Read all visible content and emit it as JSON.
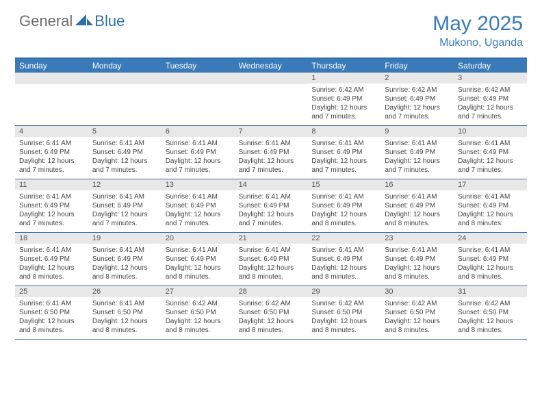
{
  "logo": {
    "general": "General",
    "blue": "Blue"
  },
  "title": "May 2025",
  "location": "Mukono, Uganda",
  "colors": {
    "brand_blue": "#3a7ab8",
    "header_bar": "#3a7ab8",
    "date_bar_bg": "#e8e8e8",
    "rule": "#2f6fa8",
    "text": "#333333",
    "logo_gray": "#6e6e6e"
  },
  "day_names": [
    "Sunday",
    "Monday",
    "Tuesday",
    "Wednesday",
    "Thursday",
    "Friday",
    "Saturday"
  ],
  "weeks": [
    [
      null,
      null,
      null,
      null,
      {
        "d": "1",
        "sr": "Sunrise: 6:42 AM",
        "ss": "Sunset: 6:49 PM",
        "dl1": "Daylight: 12 hours",
        "dl2": "and 7 minutes."
      },
      {
        "d": "2",
        "sr": "Sunrise: 6:42 AM",
        "ss": "Sunset: 6:49 PM",
        "dl1": "Daylight: 12 hours",
        "dl2": "and 7 minutes."
      },
      {
        "d": "3",
        "sr": "Sunrise: 6:42 AM",
        "ss": "Sunset: 6:49 PM",
        "dl1": "Daylight: 12 hours",
        "dl2": "and 7 minutes."
      }
    ],
    [
      {
        "d": "4",
        "sr": "Sunrise: 6:41 AM",
        "ss": "Sunset: 6:49 PM",
        "dl1": "Daylight: 12 hours",
        "dl2": "and 7 minutes."
      },
      {
        "d": "5",
        "sr": "Sunrise: 6:41 AM",
        "ss": "Sunset: 6:49 PM",
        "dl1": "Daylight: 12 hours",
        "dl2": "and 7 minutes."
      },
      {
        "d": "6",
        "sr": "Sunrise: 6:41 AM",
        "ss": "Sunset: 6:49 PM",
        "dl1": "Daylight: 12 hours",
        "dl2": "and 7 minutes."
      },
      {
        "d": "7",
        "sr": "Sunrise: 6:41 AM",
        "ss": "Sunset: 6:49 PM",
        "dl1": "Daylight: 12 hours",
        "dl2": "and 7 minutes."
      },
      {
        "d": "8",
        "sr": "Sunrise: 6:41 AM",
        "ss": "Sunset: 6:49 PM",
        "dl1": "Daylight: 12 hours",
        "dl2": "and 7 minutes."
      },
      {
        "d": "9",
        "sr": "Sunrise: 6:41 AM",
        "ss": "Sunset: 6:49 PM",
        "dl1": "Daylight: 12 hours",
        "dl2": "and 7 minutes."
      },
      {
        "d": "10",
        "sr": "Sunrise: 6:41 AM",
        "ss": "Sunset: 6:49 PM",
        "dl1": "Daylight: 12 hours",
        "dl2": "and 7 minutes."
      }
    ],
    [
      {
        "d": "11",
        "sr": "Sunrise: 6:41 AM",
        "ss": "Sunset: 6:49 PM",
        "dl1": "Daylight: 12 hours",
        "dl2": "and 7 minutes."
      },
      {
        "d": "12",
        "sr": "Sunrise: 6:41 AM",
        "ss": "Sunset: 6:49 PM",
        "dl1": "Daylight: 12 hours",
        "dl2": "and 7 minutes."
      },
      {
        "d": "13",
        "sr": "Sunrise: 6:41 AM",
        "ss": "Sunset: 6:49 PM",
        "dl1": "Daylight: 12 hours",
        "dl2": "and 7 minutes."
      },
      {
        "d": "14",
        "sr": "Sunrise: 6:41 AM",
        "ss": "Sunset: 6:49 PM",
        "dl1": "Daylight: 12 hours",
        "dl2": "and 7 minutes."
      },
      {
        "d": "15",
        "sr": "Sunrise: 6:41 AM",
        "ss": "Sunset: 6:49 PM",
        "dl1": "Daylight: 12 hours",
        "dl2": "and 8 minutes."
      },
      {
        "d": "16",
        "sr": "Sunrise: 6:41 AM",
        "ss": "Sunset: 6:49 PM",
        "dl1": "Daylight: 12 hours",
        "dl2": "and 8 minutes."
      },
      {
        "d": "17",
        "sr": "Sunrise: 6:41 AM",
        "ss": "Sunset: 6:49 PM",
        "dl1": "Daylight: 12 hours",
        "dl2": "and 8 minutes."
      }
    ],
    [
      {
        "d": "18",
        "sr": "Sunrise: 6:41 AM",
        "ss": "Sunset: 6:49 PM",
        "dl1": "Daylight: 12 hours",
        "dl2": "and 8 minutes."
      },
      {
        "d": "19",
        "sr": "Sunrise: 6:41 AM",
        "ss": "Sunset: 6:49 PM",
        "dl1": "Daylight: 12 hours",
        "dl2": "and 8 minutes."
      },
      {
        "d": "20",
        "sr": "Sunrise: 6:41 AM",
        "ss": "Sunset: 6:49 PM",
        "dl1": "Daylight: 12 hours",
        "dl2": "and 8 minutes."
      },
      {
        "d": "21",
        "sr": "Sunrise: 6:41 AM",
        "ss": "Sunset: 6:49 PM",
        "dl1": "Daylight: 12 hours",
        "dl2": "and 8 minutes."
      },
      {
        "d": "22",
        "sr": "Sunrise: 6:41 AM",
        "ss": "Sunset: 6:49 PM",
        "dl1": "Daylight: 12 hours",
        "dl2": "and 8 minutes."
      },
      {
        "d": "23",
        "sr": "Sunrise: 6:41 AM",
        "ss": "Sunset: 6:49 PM",
        "dl1": "Daylight: 12 hours",
        "dl2": "and 8 minutes."
      },
      {
        "d": "24",
        "sr": "Sunrise: 6:41 AM",
        "ss": "Sunset: 6:49 PM",
        "dl1": "Daylight: 12 hours",
        "dl2": "and 8 minutes."
      }
    ],
    [
      {
        "d": "25",
        "sr": "Sunrise: 6:41 AM",
        "ss": "Sunset: 6:50 PM",
        "dl1": "Daylight: 12 hours",
        "dl2": "and 8 minutes."
      },
      {
        "d": "26",
        "sr": "Sunrise: 6:41 AM",
        "ss": "Sunset: 6:50 PM",
        "dl1": "Daylight: 12 hours",
        "dl2": "and 8 minutes."
      },
      {
        "d": "27",
        "sr": "Sunrise: 6:42 AM",
        "ss": "Sunset: 6:50 PM",
        "dl1": "Daylight: 12 hours",
        "dl2": "and 8 minutes."
      },
      {
        "d": "28",
        "sr": "Sunrise: 6:42 AM",
        "ss": "Sunset: 6:50 PM",
        "dl1": "Daylight: 12 hours",
        "dl2": "and 8 minutes."
      },
      {
        "d": "29",
        "sr": "Sunrise: 6:42 AM",
        "ss": "Sunset: 6:50 PM",
        "dl1": "Daylight: 12 hours",
        "dl2": "and 8 minutes."
      },
      {
        "d": "30",
        "sr": "Sunrise: 6:42 AM",
        "ss": "Sunset: 6:50 PM",
        "dl1": "Daylight: 12 hours",
        "dl2": "and 8 minutes."
      },
      {
        "d": "31",
        "sr": "Sunrise: 6:42 AM",
        "ss": "Sunset: 6:50 PM",
        "dl1": "Daylight: 12 hours",
        "dl2": "and 8 minutes."
      }
    ]
  ]
}
